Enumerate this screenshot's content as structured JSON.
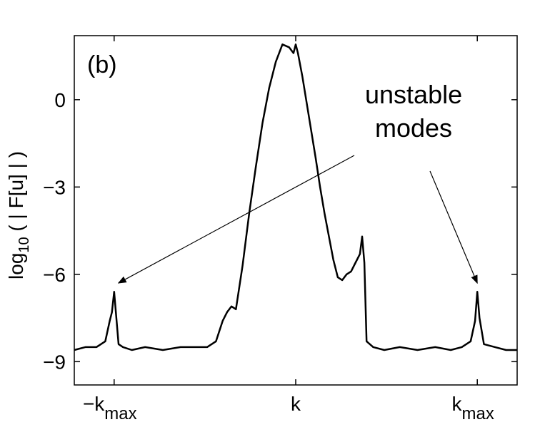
{
  "chart_data": {
    "type": "line",
    "panel_label": "(b)",
    "ylabel_main": "log",
    "ylabel_sub": "10",
    "ylabel_rest": " ( | F[u] | )",
    "xlim": [
      -1.0,
      1.0
    ],
    "ylim": [
      -9.8,
      2.2
    ],
    "yticks": [
      {
        "value": 0,
        "label": "0"
      },
      {
        "value": -3,
        "label": "−3"
      },
      {
        "value": -6,
        "label": "−6"
      },
      {
        "value": -9,
        "label": "−9"
      }
    ],
    "xticks": [
      {
        "value": -0.82,
        "main": "−k",
        "sub": "max"
      },
      {
        "value": 0.0,
        "main": "k",
        "sub": ""
      },
      {
        "value": 0.82,
        "main": "k",
        "sub": "max"
      }
    ],
    "annotation": {
      "lines": [
        "unstable",
        "modes"
      ],
      "arrow_targets": [
        {
          "x": -0.82,
          "y": -6.3
        },
        {
          "x": 0.82,
          "y": -6.3
        }
      ]
    },
    "series": [
      {
        "style": "solid black",
        "x": [
          -1.0,
          -0.95,
          -0.9,
          -0.86,
          -0.84,
          -0.83,
          -0.82,
          -0.81,
          -0.8,
          -0.78,
          -0.74,
          -0.68,
          -0.6,
          -0.52,
          -0.45,
          -0.4,
          -0.36,
          -0.33,
          -0.31,
          -0.29,
          -0.27,
          -0.24,
          -0.21,
          -0.18,
          -0.15,
          -0.12,
          -0.09,
          -0.06,
          -0.03,
          -0.01,
          0.0,
          0.01,
          0.03,
          0.06,
          0.09,
          0.11,
          0.13,
          0.15,
          0.17,
          0.19,
          0.21,
          0.23,
          0.25,
          0.27,
          0.29,
          0.3,
          0.31,
          0.32,
          0.35,
          0.4,
          0.47,
          0.55,
          0.63,
          0.7,
          0.75,
          0.79,
          0.81,
          0.82,
          0.83,
          0.85,
          0.9,
          0.95,
          1.0
        ],
        "y": [
          -8.6,
          -8.5,
          -8.5,
          -8.3,
          -7.6,
          -7.3,
          -6.6,
          -7.5,
          -8.4,
          -8.5,
          -8.6,
          -8.5,
          -8.6,
          -8.5,
          -8.5,
          -8.5,
          -8.3,
          -7.6,
          -7.3,
          -7.1,
          -7.2,
          -5.7,
          -3.9,
          -2.3,
          -0.8,
          0.4,
          1.3,
          1.9,
          1.8,
          1.6,
          1.9,
          1.6,
          0.8,
          -0.6,
          -2.0,
          -3.0,
          -3.9,
          -4.7,
          -5.5,
          -6.1,
          -6.2,
          -6.0,
          -5.9,
          -5.6,
          -5.3,
          -4.7,
          -5.6,
          -8.3,
          -8.5,
          -8.6,
          -8.5,
          -8.6,
          -8.5,
          -8.6,
          -8.5,
          -8.3,
          -7.6,
          -6.6,
          -7.5,
          -8.4,
          -8.5,
          -8.6,
          -8.6
        ]
      }
    ]
  }
}
